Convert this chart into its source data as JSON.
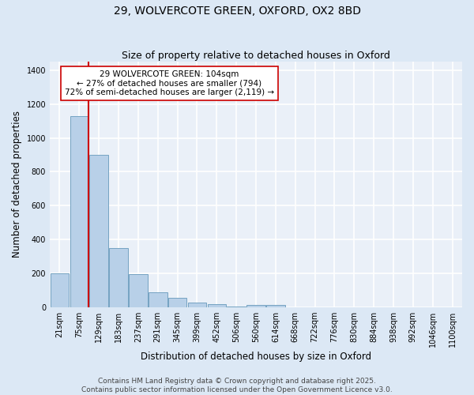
{
  "title_line1": "29, WOLVERCOTE GREEN, OXFORD, OX2 8BD",
  "title_line2": "Size of property relative to detached houses in Oxford",
  "xlabel": "Distribution of detached houses by size in Oxford",
  "ylabel": "Number of detached properties",
  "bar_labels": [
    "21sqm",
    "75sqm",
    "129sqm",
    "183sqm",
    "237sqm",
    "291sqm",
    "345sqm",
    "399sqm",
    "452sqm",
    "506sqm",
    "560sqm",
    "614sqm",
    "668sqm",
    "722sqm",
    "776sqm",
    "830sqm",
    "884sqm",
    "938sqm",
    "992sqm",
    "1046sqm",
    "1100sqm"
  ],
  "bar_values": [
    200,
    1130,
    900,
    350,
    195,
    90,
    55,
    25,
    20,
    5,
    12,
    15,
    0,
    0,
    0,
    0,
    0,
    0,
    0,
    0,
    0
  ],
  "bar_color": "#b8d0e8",
  "bar_edge_color": "#6699bb",
  "vline_color": "#cc0000",
  "vline_x": 1.48,
  "annotation_text": "29 WOLVERCOTE GREEN: 104sqm\n← 27% of detached houses are smaller (794)\n72% of semi-detached houses are larger (2,119) →",
  "annotation_box_facecolor": "#ffffff",
  "annotation_box_edgecolor": "#cc0000",
  "ylim": [
    0,
    1450
  ],
  "yticks": [
    0,
    200,
    400,
    600,
    800,
    1000,
    1200,
    1400
  ],
  "footer_line1": "Contains HM Land Registry data © Crown copyright and database right 2025.",
  "footer_line2": "Contains public sector information licensed under the Open Government Licence v3.0.",
  "fig_facecolor": "#dce8f5",
  "plot_facecolor": "#eaf0f8",
  "grid_color": "#ffffff",
  "title1_fontsize": 10,
  "title2_fontsize": 9,
  "axis_label_fontsize": 8.5,
  "tick_fontsize": 7,
  "annotation_fontsize": 7.5,
  "footer_fontsize": 6.5
}
